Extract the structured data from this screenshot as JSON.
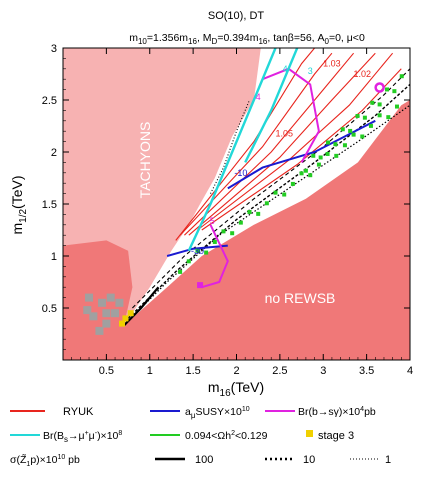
{
  "chart_data": {
    "type": "scatter",
    "title": "SO(10), DT",
    "subtitle": "m10=1.356m16, MD=0.394m16, tanβ=56, A0=0, μ<0",
    "subtitle_parts": {
      "m10_lhs": "m",
      "m10_sub": "10",
      "m10_rhs": "=1.356m",
      "m10_rhs_sub": "16",
      "md_lhs": ", M",
      "md_sub": "D",
      "md_rhs": "=0.394m",
      "md_rhs_sub": "16",
      "tanb": ", tanβ=56, A",
      "a0_sub": "0",
      "tail": "=0, μ<0"
    },
    "xlabel": "m16(TeV)",
    "xlabel_parts": {
      "main": "m",
      "sub": "16",
      "unit": "(TeV)"
    },
    "ylabel": "m1/2(TeV)",
    "ylabel_parts": {
      "main": "m",
      "sub": "1/2",
      "unit": "(TeV)"
    },
    "xlim": [
      0,
      4
    ],
    "ylim": [
      0,
      3
    ],
    "x_ticks": [
      0.5,
      1,
      1.5,
      2,
      2.5,
      3,
      3.5,
      4
    ],
    "x_tick_labels": [
      "0.5",
      "1",
      "1.5",
      "2",
      "2.5",
      "3",
      "3.5",
      "4"
    ],
    "y_ticks": [
      0.5,
      1,
      1.5,
      2,
      2.5,
      3
    ],
    "y_tick_labels": [
      "0.5",
      "1",
      "1.5",
      "2",
      "2.5",
      "3"
    ],
    "colors": {
      "tachyon": "#f7b2b2",
      "norewsb": "#f07878",
      "ryuk": "#e8251e",
      "amu": "#1a1ad0",
      "bsg": "#e022e0",
      "bsmumu": "#22d8d8",
      "relic": "#22cc22",
      "stage3": "#f0d000",
      "grey": "#a0a0a0"
    },
    "regions": [
      {
        "name": "TACHYONS",
        "label": "TACHYONS",
        "boundary": [
          [
            0,
            3
          ],
          [
            2.28,
            3
          ],
          [
            2.2,
            2.5
          ],
          [
            1.95,
            2.15
          ],
          [
            1.75,
            1.75
          ],
          [
            1.58,
            1.5
          ],
          [
            1.45,
            1.3
          ],
          [
            1.25,
            1.05
          ],
          [
            1.0,
            0.7
          ],
          [
            0.7,
            0.33
          ],
          [
            0.45,
            0.2
          ],
          [
            0.25,
            0.15
          ],
          [
            0,
            0.15
          ]
        ]
      },
      {
        "name": "no REWSB",
        "label": "no REWSB",
        "boundary": [
          [
            0.7,
            0.33
          ],
          [
            1.2,
            0.7
          ],
          [
            1.6,
            1.0
          ],
          [
            2.2,
            1.3
          ],
          [
            2.8,
            1.55
          ],
          [
            3.4,
            1.9
          ],
          [
            3.9,
            2.45
          ],
          [
            4,
            2.5
          ],
          [
            4,
            0
          ],
          [
            0,
            0
          ],
          [
            0,
            0.82
          ]
        ]
      },
      {
        "name": "tachyon-blob",
        "boundary": [
          [
            0,
            1.1
          ],
          [
            0.5,
            1.15
          ],
          [
            0.75,
            1.05
          ],
          [
            0.8,
            0.7
          ],
          [
            0.72,
            0.4
          ],
          [
            0.45,
            0.22
          ],
          [
            0,
            0.2
          ]
        ]
      }
    ],
    "series": [
      {
        "name": "RYUK",
        "style": "red",
        "points": []
      },
      {
        "name": "aμSUSY×10^10",
        "style": "blue",
        "contours": [
          {
            "label": "-10",
            "points": [
              [
                1.9,
                1.65
              ],
              [
                2.3,
                1.85
              ],
              [
                2.9,
                2.0
              ],
              [
                3.6,
                2.3
              ]
            ]
          },
          {
            "label": "-30",
            "points": [
              [
                1.2,
                1.0
              ],
              [
                1.5,
                1.07
              ],
              [
                1.9,
                1.1
              ]
            ]
          }
        ]
      },
      {
        "name": "Br(b→sγ)×10^4 pb",
        "style": "magenta",
        "contours": [
          {
            "label": "4",
            "points": [
              [
                2.3,
                2.7
              ],
              [
                2.6,
                2.8
              ],
              [
                2.85,
                2.65
              ],
              [
                2.95,
                2.2
              ],
              [
                2.75,
                1.9
              ]
            ]
          },
          {
            "label": "5",
            "points": [
              [
                1.7,
                1.3
              ],
              [
                1.9,
                0.95
              ],
              [
                1.8,
                0.75
              ],
              [
                1.6,
                0.7
              ]
            ]
          }
        ]
      },
      {
        "name": "Br(Bs→μ+μ-)×10^8",
        "style": "cyan",
        "contours": [
          {
            "label": "4",
            "points": [
              [
                2.45,
                3.0
              ],
              [
                2.2,
                2.5
              ],
              [
                1.95,
                2.0
              ],
              [
                1.7,
                1.5
              ],
              [
                1.45,
                1.05
              ]
            ]
          },
          {
            "label": "3",
            "points": [
              [
                2.7,
                3.0
              ],
              [
                2.4,
                2.4
              ],
              [
                2.1,
                1.9
              ]
            ]
          }
        ]
      },
      {
        "name": "0.094<Ωh²<0.129",
        "style": "green",
        "points": []
      },
      {
        "name": "stage 3",
        "style": "yellow",
        "points": [
          [
            0.72,
            0.4
          ],
          [
            0.78,
            0.45
          ],
          [
            0.68,
            0.35
          ]
        ]
      }
    ],
    "contour_labels": [
      {
        "text": "1.03",
        "x": 3.1,
        "y": 2.82,
        "color": "#e8251e"
      },
      {
        "text": "1.02",
        "x": 3.45,
        "y": 2.72,
        "color": "#e8251e"
      },
      {
        "text": "1.05",
        "x": 2.55,
        "y": 2.15,
        "color": "#e8251e"
      },
      {
        "text": "4",
        "x": 2.56,
        "y": 2.77,
        "color": "#22d8d8"
      },
      {
        "text": "3",
        "x": 2.85,
        "y": 2.75,
        "color": "#22d8d8"
      },
      {
        "text": "4",
        "x": 2.25,
        "y": 2.5,
        "color": "#e022e0"
      },
      {
        "text": "-10",
        "x": 2.05,
        "y": 1.77,
        "color": "#1a1ad0"
      },
      {
        "text": "5",
        "x": 1.72,
        "y": 1.31,
        "color": "#e022e0"
      },
      {
        "text": "-30",
        "x": 1.55,
        "y": 1.02,
        "color": "#1a1ad0"
      }
    ],
    "legend": {
      "placement": "bottom",
      "items": [
        {
          "label": "RYUK",
          "color": "#e8251e",
          "kind": "line"
        },
        {
          "label": "aμSUSY×10^10",
          "color": "#1a1ad0",
          "kind": "line"
        },
        {
          "label": "Br(b→sγ)×10^4 pb",
          "color": "#e022e0",
          "kind": "line"
        },
        {
          "label": "Br(Bs→μ+μ-)×10^8",
          "color": "#22d8d8",
          "kind": "line"
        },
        {
          "label": "0.094<Ωh²<0.129",
          "color": "#22cc22",
          "kind": "line"
        },
        {
          "label": "stage 3",
          "color": "#f0d000",
          "kind": "square"
        }
      ],
      "sigma_label": "σ(Z̃₁p)×10¹⁰ pb",
      "sigma_items": [
        {
          "label": "100",
          "dash": "solid"
        },
        {
          "label": "10",
          "dash": "dotted-bold"
        },
        {
          "label": "1",
          "dash": "dotted-thin"
        }
      ]
    }
  },
  "labels": {
    "title": "SO(10), DT",
    "tachyons": "TACHYONS",
    "no_rewsb": "no REWSB"
  }
}
